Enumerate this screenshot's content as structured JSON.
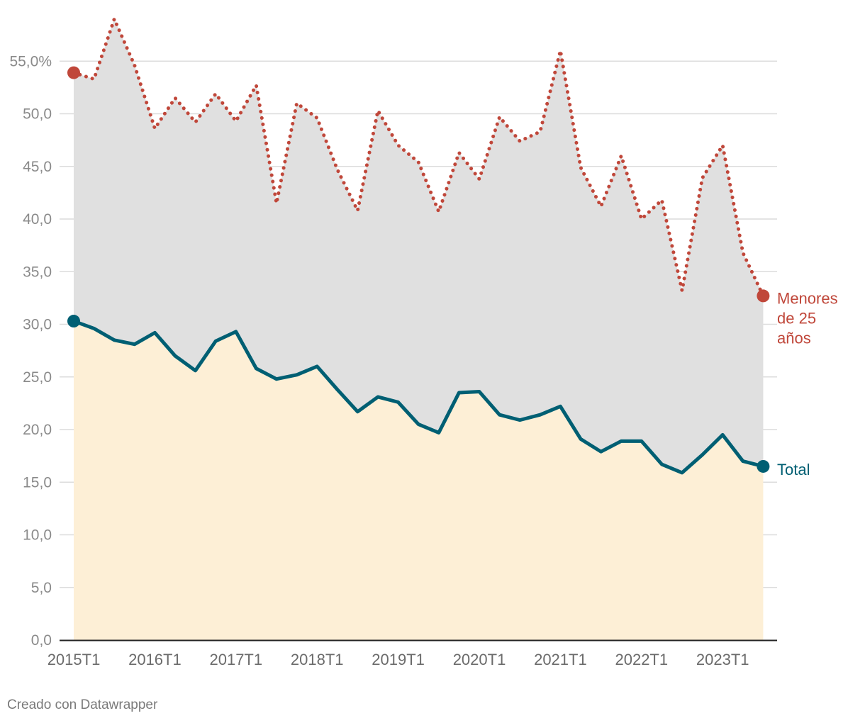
{
  "chart_data": {
    "type": "area",
    "title": "",
    "xlabel": "",
    "ylabel": "",
    "ylim": [
      0,
      58
    ],
    "y_ticks": [
      0,
      5,
      10,
      15,
      20,
      25,
      30,
      35,
      40,
      45,
      50,
      55
    ],
    "y_tick_labels": [
      "0,0",
      "5,0",
      "10,0",
      "15,0",
      "20,0",
      "25,0",
      "30,0",
      "35,0",
      "40,0",
      "45,0",
      "50,0",
      "55,0%"
    ],
    "x_ticks": [
      "2015T1",
      "2016T1",
      "2017T1",
      "2018T1",
      "2019T1",
      "2020T1",
      "2021T1",
      "2022T1",
      "2023T1"
    ],
    "x": [
      "2015T1",
      "2015T2",
      "2015T3",
      "2015T4",
      "2016T1",
      "2016T2",
      "2016T3",
      "2016T4",
      "2017T1",
      "2017T2",
      "2017T3",
      "2017T4",
      "2018T1",
      "2018T2",
      "2018T3",
      "2018T4",
      "2019T1",
      "2019T2",
      "2019T3",
      "2019T4",
      "2020T1",
      "2020T2",
      "2020T3",
      "2020T4",
      "2021T1",
      "2021T2",
      "2021T3",
      "2021T4",
      "2022T1",
      "2022T2",
      "2022T3",
      "2022T4",
      "2023T1",
      "2023T2",
      "2023T3"
    ],
    "series": [
      {
        "name": "Menores de 25 años",
        "color": "#c0473a",
        "style": "dotted",
        "values": [
          53.9,
          53.3,
          59.0,
          54.6,
          48.6,
          51.5,
          49.2,
          51.9,
          49.3,
          52.7,
          41.5,
          51.0,
          49.6,
          44.7,
          40.8,
          50.3,
          47.0,
          45.4,
          40.7,
          46.3,
          43.8,
          49.7,
          47.4,
          48.3,
          56.0,
          44.9,
          41.2,
          46.0,
          40.0,
          41.8,
          33.2,
          43.9,
          47.0,
          36.8,
          32.7
        ]
      },
      {
        "name": "Total",
        "color": "#005f73",
        "style": "solid",
        "values": [
          30.3,
          29.6,
          28.5,
          28.1,
          29.2,
          27.0,
          25.6,
          28.4,
          29.3,
          25.8,
          24.8,
          25.2,
          26.0,
          23.8,
          21.7,
          23.1,
          22.6,
          20.5,
          19.7,
          23.5,
          23.6,
          21.4,
          20.9,
          21.4,
          22.2,
          19.1,
          17.9,
          18.9,
          18.9,
          16.7,
          15.9,
          17.6,
          19.5,
          17.0,
          16.5
        ]
      }
    ],
    "labels": {
      "young_line1": "Menores",
      "young_line2": "de 25",
      "young_line3": "años",
      "total": "Total"
    },
    "colors": {
      "young": "#c0473a",
      "total": "#005f73",
      "gap_fill": "#e0e0e0",
      "total_fill": "#fdefd6",
      "grid": "#dcdcdc"
    }
  },
  "footer": {
    "credit": "Creado con Datawrapper"
  }
}
